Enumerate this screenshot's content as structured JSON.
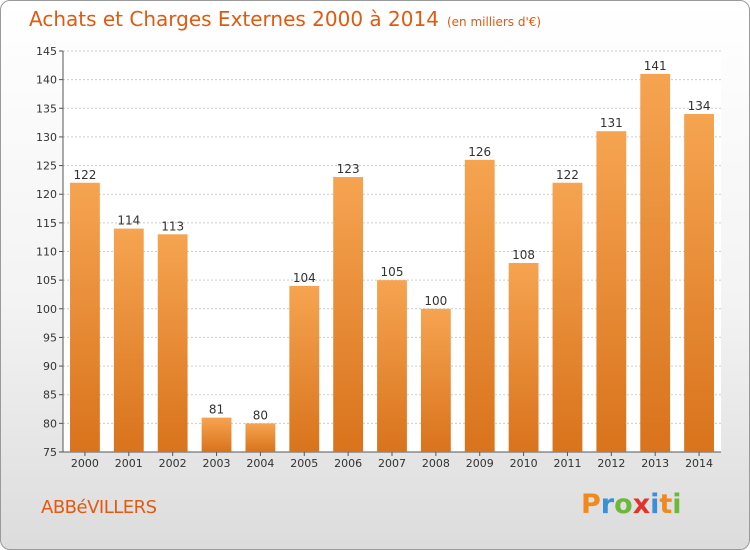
{
  "header": {
    "title": "Achats et Charges Externes 2000 à 2014",
    "subtitle": "(en milliers d'€)"
  },
  "footer": {
    "commune": "ABBéVILLERS",
    "logo_text": "Proxiti",
    "logo_colors": [
      "#f08a1c",
      "#3a8fd6",
      "#6cb83a",
      "#e0342b",
      "#3a8fd6",
      "#f08a1c",
      "#6cb83a"
    ]
  },
  "colors": {
    "bar_top": "#f6a451",
    "bar_bottom": "#d9731c",
    "title": "#e05a10",
    "grid": "#cccccc"
  },
  "chart_data": {
    "type": "bar",
    "title": "Achats et Charges Externes 2000 à 2014",
    "subtitle": "(en milliers d'€)",
    "categories": [
      "2000",
      "2001",
      "2002",
      "2003",
      "2004",
      "2005",
      "2006",
      "2007",
      "2008",
      "2009",
      "2010",
      "2011",
      "2012",
      "2013",
      "2014"
    ],
    "values": [
      122,
      114,
      113,
      81,
      80,
      104,
      123,
      105,
      100,
      126,
      108,
      122,
      131,
      141,
      134
    ],
    "ylim": [
      75,
      145
    ],
    "yticks": [
      75,
      80,
      85,
      90,
      95,
      100,
      105,
      110,
      115,
      120,
      125,
      130,
      135,
      140,
      145
    ],
    "xlabel": "",
    "ylabel": "",
    "grid": true,
    "data_labels": true
  }
}
